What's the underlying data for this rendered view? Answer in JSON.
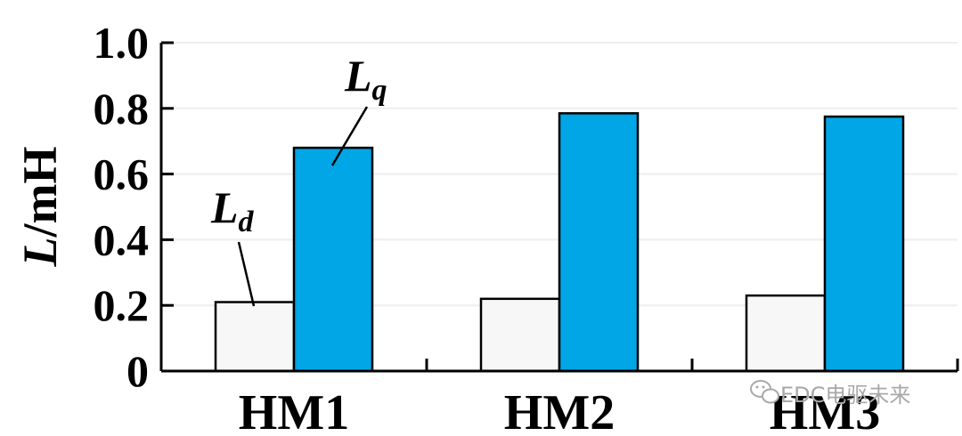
{
  "chart_data": {
    "type": "bar",
    "categories": [
      "HM1",
      "HM2",
      "HM3"
    ],
    "series": [
      {
        "name_main": "L",
        "name_sub": "d",
        "values": [
          0.21,
          0.22,
          0.23
        ],
        "color": "#f7f7f7"
      },
      {
        "name_main": "L",
        "name_sub": "q",
        "values": [
          0.68,
          0.785,
          0.775
        ],
        "color": "#00a6e6"
      }
    ],
    "ylabel_main": "L",
    "ylabel_unit": "/mH",
    "ylim": [
      0,
      1.0
    ],
    "yticks": [
      "0",
      "0.2",
      "0.4",
      "0.6",
      "0.8",
      "1.0"
    ],
    "grid": true,
    "grid_color": "#eeeeee",
    "axis_color": "#000000"
  },
  "watermark": {
    "icon": "wechat-icon",
    "text": "EDC电驱未来"
  }
}
